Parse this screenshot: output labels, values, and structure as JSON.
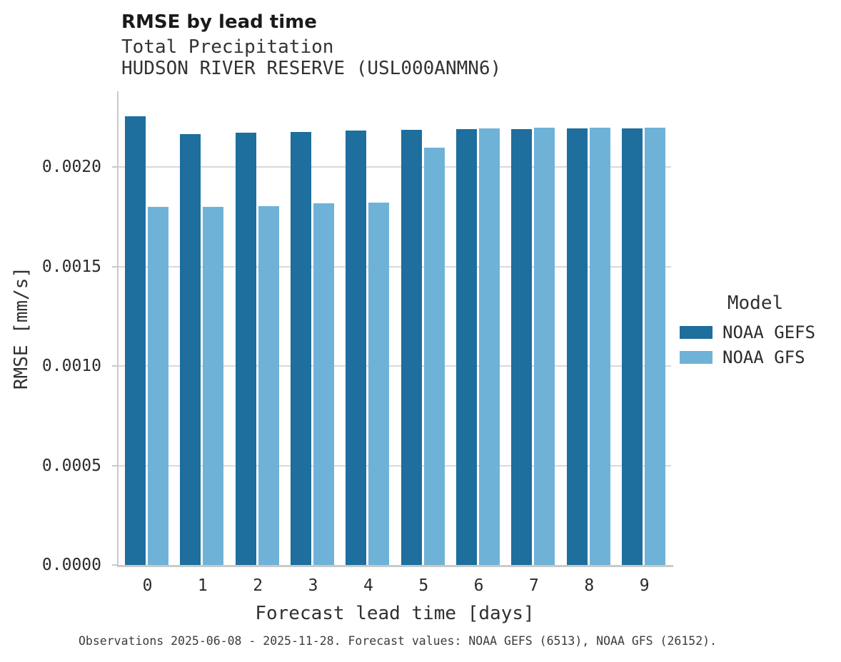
{
  "header": {
    "title": "RMSE by lead time",
    "subtitle1": "Total Precipitation",
    "subtitle2": "HUDSON RIVER RESERVE (USL000ANMN6)"
  },
  "colors": {
    "noaa_gefs": "#1e6e9e",
    "noaa_gfs": "#6fb2d8",
    "gridline": "#d9d9d9",
    "axis_line": "#c9c9c9"
  },
  "legend": {
    "title": "Model",
    "entries": [
      {
        "label": "NOAA GEFS",
        "color": "#1e6e9e"
      },
      {
        "label": "NOAA GFS",
        "color": "#6fb2d8"
      }
    ]
  },
  "footer": {
    "caption": "Observations 2025-06-08 - 2025-11-28. Forecast values: NOAA GEFS (6513), NOAA GFS (26152)."
  },
  "chart_data": {
    "type": "bar",
    "title": "RMSE by lead time",
    "subtitle": [
      "Total Precipitation",
      "HUDSON RIVER RESERVE (USL000ANMN6)"
    ],
    "xlabel": "Forecast lead time [days]",
    "ylabel": "RMSE [mm/s]",
    "categories": [
      "0",
      "1",
      "2",
      "3",
      "4",
      "5",
      "6",
      "7",
      "8",
      "9"
    ],
    "series": [
      {
        "name": "NOAA GEFS",
        "color": "#1e6e9e",
        "values": [
          0.002257,
          0.002166,
          0.002172,
          0.002177,
          0.002184,
          0.002187,
          0.002191,
          0.002191,
          0.002195,
          0.002195
        ]
      },
      {
        "name": "NOAA GFS",
        "color": "#6fb2d8",
        "values": [
          0.0018,
          0.0018,
          0.001803,
          0.001818,
          0.001822,
          0.002098,
          0.002196,
          0.002198,
          0.002198,
          0.002198
        ]
      }
    ],
    "ylim": [
      0,
      0.002381
    ],
    "yticks": [
      0.0,
      0.0005,
      0.001,
      0.0015,
      0.002
    ],
    "ytick_labels": [
      "0.0000",
      "0.0005",
      "0.0010",
      "0.0015",
      "0.0020"
    ],
    "grid": true,
    "legend_position": "right",
    "legend_title": "Model"
  }
}
